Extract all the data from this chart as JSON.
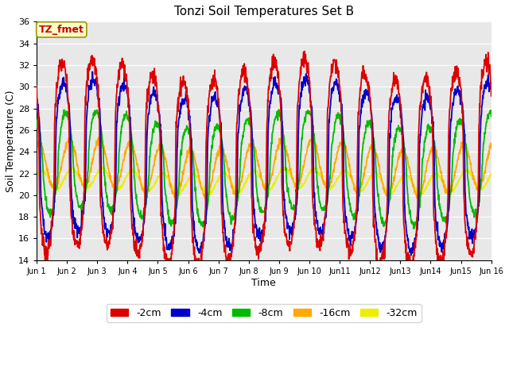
{
  "title": "Tonzi Soil Temperatures Set B",
  "xlabel": "Time",
  "ylabel": "Soil Temperature (C)",
  "ylim": [
    14,
    36
  ],
  "xlim": [
    0,
    360
  ],
  "annotation_text": "TZ_fmet",
  "annotation_color": "#cc0000",
  "annotation_bg": "#ffffcc",
  "plot_bg": "#e8e8e8",
  "grid_color": "white",
  "colors": {
    "-2cm": "#dd0000",
    "-4cm": "#0000cc",
    "-8cm": "#00bb00",
    "-16cm": "#ffaa00",
    "-32cm": "#eeee00"
  },
  "legend_labels": [
    "-2cm",
    "-4cm",
    "-8cm",
    "-16cm",
    "-32cm"
  ],
  "xtick_labels": [
    "Jun 1",
    "Jun 2",
    "Jun 3",
    "Jun 4",
    "Jun 5",
    "Jun 6",
    "Jun 7",
    "Jun 8",
    "Jun 9",
    "Jun 10",
    "Jun11",
    "Jun12",
    "Jun13",
    "Jun14",
    "Jun15",
    "Jun 16"
  ],
  "xtick_positions": [
    0,
    24,
    48,
    72,
    96,
    120,
    144,
    168,
    192,
    216,
    240,
    264,
    288,
    312,
    336,
    360
  ],
  "ytick_positions": [
    14,
    16,
    18,
    20,
    22,
    24,
    26,
    28,
    30,
    32,
    34,
    36
  ],
  "n_points": 1441,
  "n_hours": 360
}
